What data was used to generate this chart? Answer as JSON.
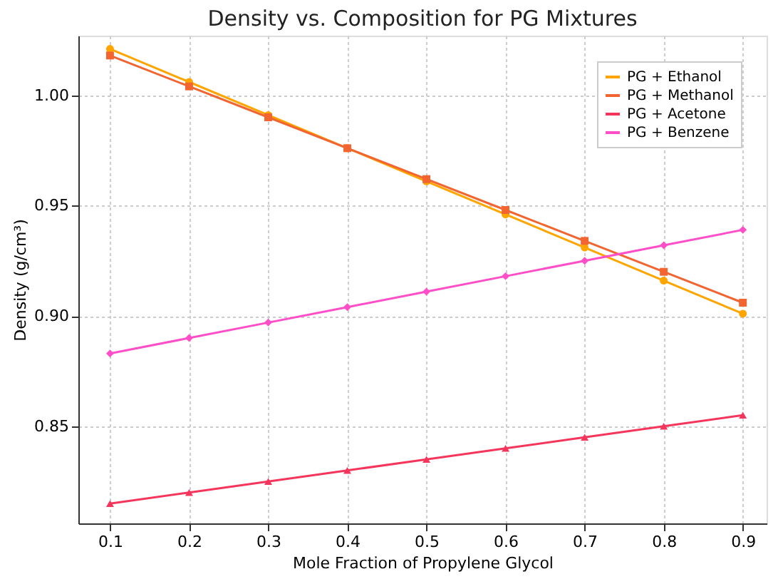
{
  "chart_data": {
    "type": "line",
    "title": "Density vs. Composition for PG Mixtures",
    "xlabel": "Mole Fraction of Propylene Glycol",
    "ylabel": "Density (g/cm³)",
    "x": [
      0.1,
      0.2,
      0.3,
      0.4,
      0.5,
      0.6,
      0.7,
      0.8,
      0.9
    ],
    "series": [
      {
        "name": "PG + Ethanol",
        "color": "#ffa500",
        "marker": "circle",
        "values": [
          1.021,
          1.006,
          0.991,
          0.976,
          0.961,
          0.946,
          0.931,
          0.916,
          0.901
        ]
      },
      {
        "name": "PG + Methanol",
        "color": "#f26430",
        "marker": "square",
        "values": [
          1.018,
          1.004,
          0.99,
          0.976,
          0.962,
          0.948,
          0.934,
          0.92,
          0.906
        ]
      },
      {
        "name": "PG + Acetone",
        "color": "#f5365c",
        "marker": "triangle",
        "values": [
          0.815,
          0.82,
          0.825,
          0.83,
          0.835,
          0.84,
          0.845,
          0.85,
          0.855
        ]
      },
      {
        "name": "PG + Benzene",
        "color": "#ff4fc8",
        "marker": "diamond",
        "values": [
          0.883,
          0.89,
          0.897,
          0.904,
          0.911,
          0.918,
          0.925,
          0.932,
          0.939
        ]
      }
    ],
    "xlim": [
      0.06,
      0.93
    ],
    "xticks": [
      0.1,
      0.2,
      0.3,
      0.4,
      0.5,
      0.6,
      0.7,
      0.8,
      0.9
    ],
    "ylim": [
      0.806,
      1.027
    ],
    "yticks": [
      {
        "value": 0.85,
        "label": "0.85"
      },
      {
        "value": 0.9,
        "label": "0.90"
      },
      {
        "value": 0.95,
        "label": "0.95"
      },
      {
        "value": 1.0,
        "label": "1.00"
      }
    ],
    "grid": true,
    "legend": "top right",
    "line_style": "solid"
  }
}
